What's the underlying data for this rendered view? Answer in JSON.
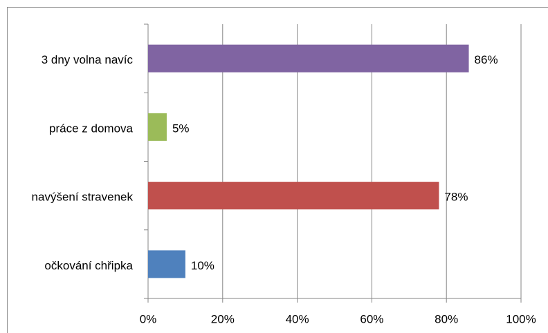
{
  "chart_data": {
    "type": "bar",
    "orientation": "horizontal",
    "categories": [
      "3 dny volna navíc",
      "práce z domova",
      "navýšení stravenek",
      "očkování chřipka"
    ],
    "values": [
      86,
      5,
      78,
      10
    ],
    "value_labels": [
      "86%",
      "5%",
      "78%",
      "10%"
    ],
    "colors": [
      "#8064a2",
      "#9bbb59",
      "#c0504d",
      "#4f81bd"
    ],
    "xlim": [
      0,
      100
    ],
    "xticks": [
      {
        "value": 0,
        "label": "0%"
      },
      {
        "value": 20,
        "label": "20%"
      },
      {
        "value": 40,
        "label": "40%"
      },
      {
        "value": 60,
        "label": "60%"
      },
      {
        "value": 80,
        "label": "80%"
      },
      {
        "value": 100,
        "label": "100%"
      }
    ],
    "grid": true
  }
}
